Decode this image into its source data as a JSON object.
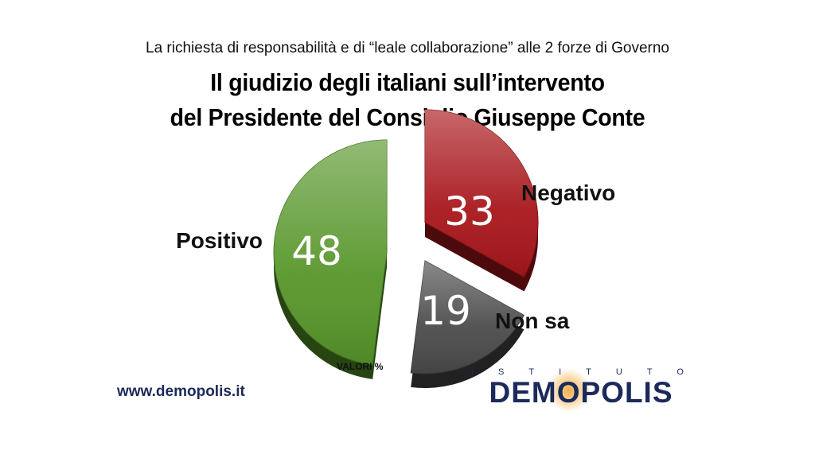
{
  "header": {
    "subtitle": "La richiesta di responsabilità e di “leale collaborazione” alle 2 forze di Governo",
    "title_line1": "Il giudizio degli italiani sull’intervento",
    "title_line2": "del Presidente del Consiglio Giuseppe Conte"
  },
  "chart_data": {
    "type": "pie",
    "categories": [
      "Negativo",
      "Non sa",
      "Positivo"
    ],
    "values": [
      33,
      19,
      48
    ],
    "colors": [
      "#a8161b",
      "#4a4a4a",
      "#57962a"
    ],
    "unit_note": "VALORI %",
    "exploded": true,
    "style": "3d"
  },
  "footer": {
    "website": "www.demopolis.it",
    "logo_top": "ISTITUTO",
    "logo_name": "DEMOPOLIS"
  }
}
